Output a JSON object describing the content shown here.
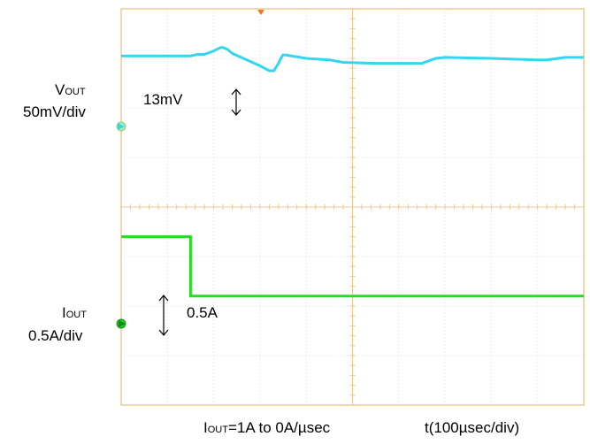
{
  "chart_data": {
    "type": "line",
    "title": "",
    "x_label": "t(100µsec/div)",
    "x_divisions": 10,
    "y_divisions": 8,
    "grid": true,
    "colors": {
      "grid_frame": "#f0c896",
      "grid_minor": "#f5d9b8",
      "v_trace": "#33d6f0",
      "i_trace": "#22dd22",
      "trigger_marker": "#f07820"
    },
    "series": [
      {
        "name": "VOUT",
        "label_main": "V",
        "label_sub": "OUT",
        "scale": "50mV/div",
        "x_div": [
          0,
          1.5,
          1.65,
          1.8,
          2.0,
          2.15,
          2.2,
          2.3,
          2.4,
          3.0,
          3.1,
          3.2,
          3.3,
          3.4,
          3.45,
          3.5,
          3.55,
          4.0,
          4.5,
          4.8,
          5.5,
          6.0,
          6.5,
          6.8,
          7.0,
          8.0,
          9.0,
          9.2,
          9.6,
          10.0
        ],
        "y_div": [
          -0.95,
          -0.95,
          -0.92,
          -0.92,
          -0.85,
          -0.78,
          -0.78,
          -0.82,
          -0.9,
          -1.15,
          -1.2,
          -1.25,
          -1.25,
          -1.1,
          -1.0,
          -0.93,
          -0.93,
          -1.0,
          -1.03,
          -1.08,
          -1.1,
          -1.1,
          -1.1,
          -1.0,
          -0.98,
          -1.0,
          -1.03,
          -1.03,
          -0.98,
          -0.98
        ]
      },
      {
        "name": "IOUT",
        "label_main": "I",
        "label_sub": "OUT",
        "scale": "0.5A/div",
        "x_div": [
          0,
          1.5,
          1.5,
          10.0
        ],
        "y_div": [
          -4.6,
          -4.6,
          -5.8,
          -5.8
        ]
      }
    ],
    "annotations": {
      "v_step": "13mV",
      "i_step": "0.5A",
      "condition_main": "I",
      "condition_sub": "OUT",
      "condition_rest": "=1A to 0A/µsec"
    }
  }
}
